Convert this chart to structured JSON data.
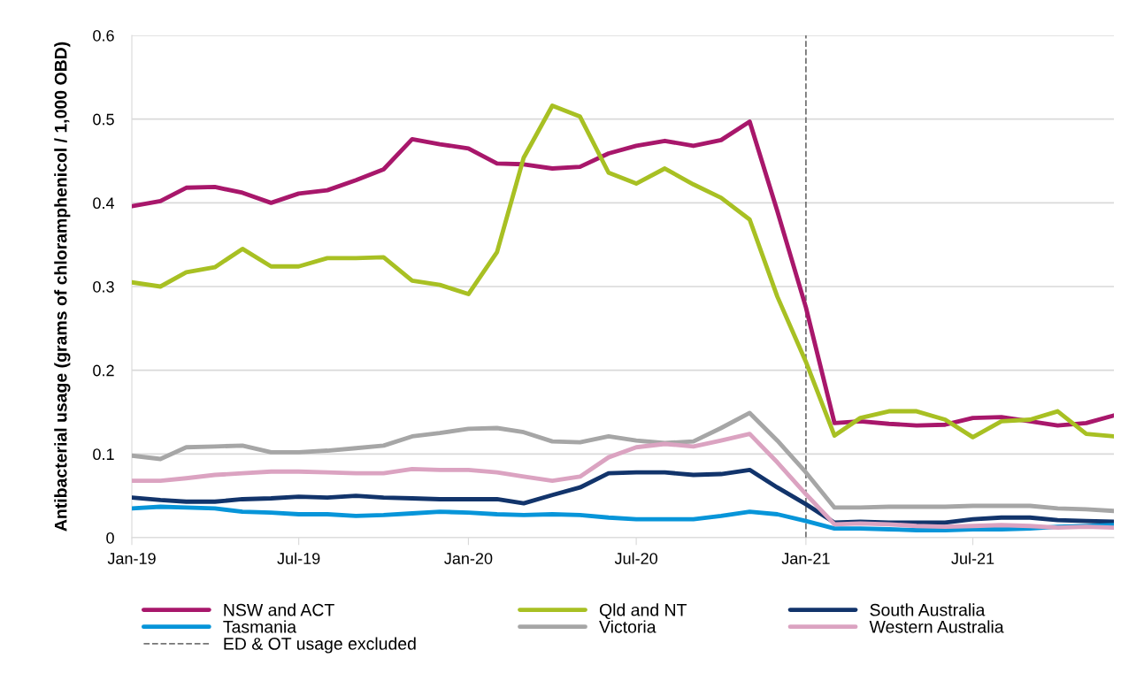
{
  "chart_data": {
    "type": "line",
    "ylabel": "Antibacterial usage (grams of chloramphenicol / 1,000 OBD)",
    "x": [
      "2019-01",
      "2019-02",
      "2019-03",
      "2019-04",
      "2019-05",
      "2019-06",
      "2019-07",
      "2019-08",
      "2019-09",
      "2019-10",
      "2019-11",
      "2019-12",
      "2020-01",
      "2020-02",
      "2020-03",
      "2020-04",
      "2020-05",
      "2020-06",
      "2020-07",
      "2020-08",
      "2020-09",
      "2020-10",
      "2020-11",
      "2020-12",
      "2021-01",
      "2021-02",
      "2021-03",
      "2021-04",
      "2021-05",
      "2021-06",
      "2021-07",
      "2021-08",
      "2021-09",
      "2021-10",
      "2021-11",
      "2021-12"
    ],
    "series": [
      {
        "name": "NSW and ACT",
        "color": "#a8176b",
        "values": [
          0.396,
          0.402,
          0.418,
          0.419,
          0.412,
          0.4,
          0.411,
          0.415,
          0.427,
          0.44,
          0.476,
          0.47,
          0.465,
          0.447,
          0.446,
          0.441,
          0.443,
          0.459,
          0.468,
          0.474,
          0.468,
          0.475,
          0.497,
          0.39,
          0.275,
          0.137,
          0.139,
          0.136,
          0.134,
          0.135,
          0.143,
          0.144,
          0.139,
          0.134,
          0.137,
          0.146
        ]
      },
      {
        "name": "Qld and NT",
        "color": "#a8c023",
        "values": [
          0.305,
          0.3,
          0.317,
          0.323,
          0.345,
          0.324,
          0.324,
          0.334,
          0.334,
          0.335,
          0.307,
          0.302,
          0.291,
          0.341,
          0.454,
          0.516,
          0.503,
          0.436,
          0.423,
          0.441,
          0.422,
          0.406,
          0.38,
          0.288,
          0.21,
          0.122,
          0.143,
          0.151,
          0.151,
          0.141,
          0.12,
          0.139,
          0.141,
          0.151,
          0.124,
          0.121
        ]
      },
      {
        "name": "South Australia",
        "color": "#12346b",
        "values": [
          0.048,
          0.045,
          0.043,
          0.043,
          0.046,
          0.047,
          0.049,
          0.048,
          0.05,
          0.048,
          0.047,
          0.046,
          0.046,
          0.046,
          0.041,
          0.051,
          0.06,
          0.077,
          0.078,
          0.078,
          0.075,
          0.076,
          0.081,
          0.06,
          0.04,
          0.018,
          0.019,
          0.018,
          0.018,
          0.018,
          0.022,
          0.024,
          0.024,
          0.021,
          0.02,
          0.019
        ]
      },
      {
        "name": "Tasmania",
        "color": "#0795d9",
        "values": [
          0.035,
          0.037,
          0.036,
          0.035,
          0.031,
          0.03,
          0.028,
          0.028,
          0.026,
          0.027,
          0.029,
          0.031,
          0.03,
          0.028,
          0.027,
          0.028,
          0.027,
          0.024,
          0.022,
          0.022,
          0.022,
          0.026,
          0.031,
          0.028,
          0.02,
          0.011,
          0.011,
          0.01,
          0.009,
          0.009,
          0.01,
          0.01,
          0.011,
          0.013,
          0.014,
          0.015
        ]
      },
      {
        "name": "Victoria",
        "color": "#a6a6a6",
        "values": [
          0.098,
          0.094,
          0.108,
          0.109,
          0.11,
          0.102,
          0.102,
          0.104,
          0.107,
          0.11,
          0.121,
          0.125,
          0.13,
          0.131,
          0.126,
          0.115,
          0.114,
          0.121,
          0.116,
          0.113,
          0.115,
          0.131,
          0.149,
          0.116,
          0.078,
          0.036,
          0.036,
          0.037,
          0.037,
          0.037,
          0.038,
          0.038,
          0.038,
          0.035,
          0.034,
          0.032
        ]
      },
      {
        "name": "Western Australia",
        "color": "#dba3c1",
        "values": [
          0.068,
          0.068,
          0.071,
          0.075,
          0.077,
          0.079,
          0.079,
          0.078,
          0.077,
          0.077,
          0.082,
          0.081,
          0.081,
          0.078,
          0.073,
          0.068,
          0.073,
          0.096,
          0.108,
          0.112,
          0.109,
          0.116,
          0.124,
          0.09,
          0.052,
          0.016,
          0.017,
          0.016,
          0.014,
          0.013,
          0.014,
          0.015,
          0.014,
          0.012,
          0.013,
          0.012
        ]
      }
    ],
    "ref_lines": [
      {
        "axis": "x",
        "value": "2021-01",
        "label": "ED & OT usage excluded",
        "color": "#767676",
        "line_style": "dashed"
      }
    ],
    "xlim": [
      "2019-01",
      "2021-12"
    ],
    "xticks": [
      {
        "value": "2019-01",
        "label": "Jan-19"
      },
      {
        "value": "2019-07",
        "label": "Jul-19"
      },
      {
        "value": "2020-01",
        "label": "Jan-20"
      },
      {
        "value": "2020-07",
        "label": "Jul-20"
      },
      {
        "value": "2021-01",
        "label": "Jan-21"
      },
      {
        "value": "2021-07",
        "label": "Jul-21"
      }
    ],
    "ylim": [
      0,
      0.6
    ],
    "yticks": [
      {
        "value": 0,
        "label": "0"
      },
      0.1,
      0.2,
      0.3,
      0.4,
      0.5,
      0.6
    ],
    "grid": "y",
    "legend": "bottom",
    "marker": "none",
    "line_style": "solid"
  }
}
